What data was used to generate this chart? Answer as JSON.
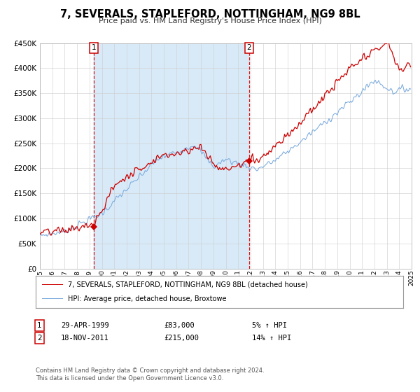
{
  "title": "7, SEVERALS, STAPLEFORD, NOTTINGHAM, NG9 8BL",
  "subtitle": "Price paid vs. HM Land Registry's House Price Index (HPI)",
  "legend_line1": "7, SEVERALS, STAPLEFORD, NOTTINGHAM, NG9 8BL (detached house)",
  "legend_line2": "HPI: Average price, detached house, Broxtowe",
  "marker1_date": "29-APR-1999",
  "marker1_price": "£83,000",
  "marker1_hpi": "5% ↑ HPI",
  "marker2_date": "18-NOV-2011",
  "marker2_price": "£215,000",
  "marker2_hpi": "14% ↑ HPI",
  "footer": "Contains HM Land Registry data © Crown copyright and database right 2024.\nThis data is licensed under the Open Government Licence v3.0.",
  "red_color": "#cc0000",
  "blue_color": "#7aaadd",
  "bg_color": "#d8eaf8",
  "grid_color": "#cccccc",
  "sale1_year": 1999.33,
  "sale2_year": 2011.88,
  "sale1_price": 83000,
  "sale2_price": 215000,
  "ylim_max": 450000,
  "year_start": 1995,
  "year_end": 2025
}
